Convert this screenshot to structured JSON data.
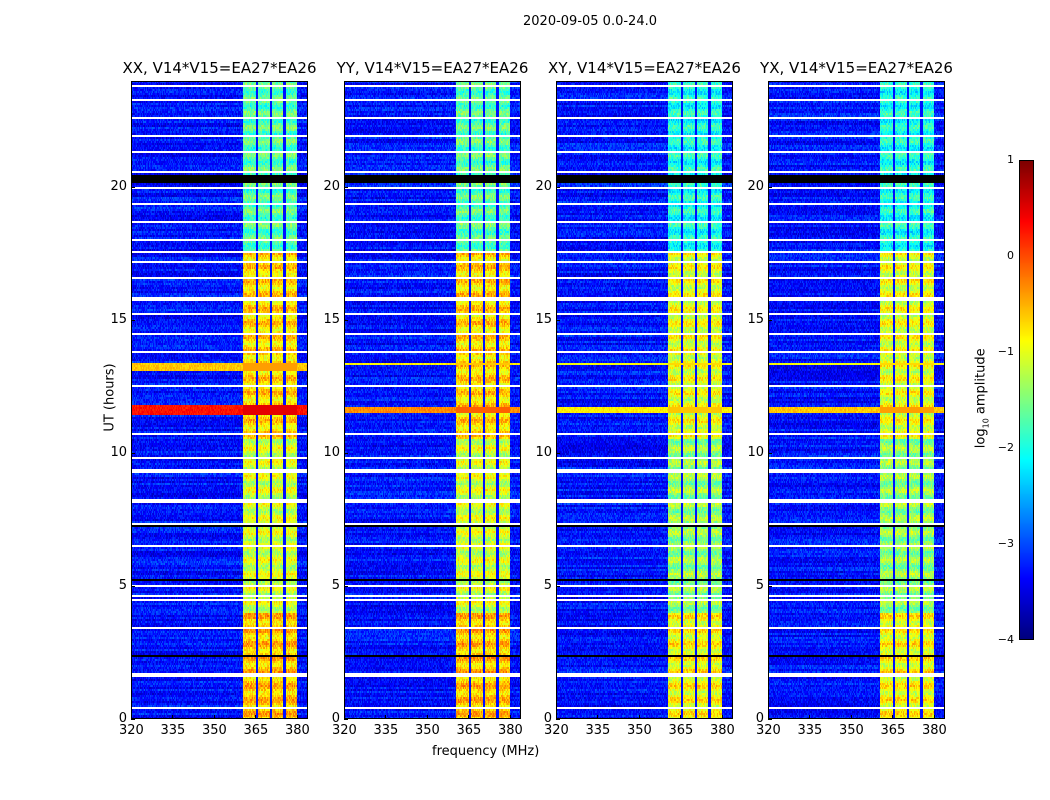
{
  "chart_data": {
    "type": "heatmap",
    "title": "2020-09-05 0.0-24.0",
    "xlabel": "frequency (MHz)",
    "ylabel": "UT (hours)",
    "xlim": [
      320,
      384
    ],
    "ylim": [
      0,
      24
    ],
    "xticks": [
      "320",
      "335",
      "350",
      "365",
      "380"
    ],
    "xtick_values": [
      320,
      335,
      350,
      365,
      380
    ],
    "yticks": [
      "0",
      "5",
      "10",
      "15",
      "20"
    ],
    "ytick_values": [
      0,
      5,
      10,
      15,
      20
    ],
    "panels": [
      {
        "title": "XX, V14*V15=EA27*EA26",
        "strong_rows": [
          [
            11.4,
            11.8,
            0.3
          ],
          [
            13.1,
            13.4,
            -0.6
          ]
        ]
      },
      {
        "title": "YY, V14*V15=EA27*EA26",
        "strong_rows": [
          [
            11.5,
            11.7,
            -0.3
          ],
          [
            13.3,
            13.4,
            -0.8
          ]
        ]
      },
      {
        "title": "XY, V14*V15=EA27*EA26",
        "strong_rows": [
          [
            11.5,
            11.7,
            -0.8
          ],
          [
            13.3,
            13.4,
            -0.9
          ]
        ]
      },
      {
        "title": "YX, V14*V15=EA27*EA26",
        "strong_rows": [
          [
            11.5,
            11.7,
            -0.6
          ],
          [
            13.3,
            13.4,
            -0.9
          ]
        ]
      }
    ],
    "background_log_amplitude": -3.3,
    "rfi_band_mhz": [
      360.5,
      380
    ],
    "rfi_band_gaps_mhz": [
      365.5,
      370.5,
      375.5
    ],
    "rfi_band_log_amplitude_by_time": [
      {
        "from": 0,
        "to": 4,
        "value": -0.6
      },
      {
        "from": 4,
        "to": 10.5,
        "value": -1.1
      },
      {
        "from": 10.5,
        "to": 17.5,
        "value": -0.7
      },
      {
        "from": 17.5,
        "to": 24,
        "value": -1.7
      }
    ],
    "flagged_hours_white": [
      0.4,
      1.6,
      1.7,
      3.4,
      4.5,
      4.6,
      5.0,
      6.5,
      7.3,
      8.2,
      9.3,
      9.4,
      9.8,
      10.7,
      12.5,
      13.8,
      14.5,
      15.2,
      15.8,
      16.6,
      17.2,
      17.6,
      18.0,
      18.7,
      19.4,
      20.0,
      20.6,
      21.3,
      21.9,
      22.6,
      23.3,
      23.8
    ],
    "flagged_hours_black": [
      [
        20.2,
        20.5
      ],
      [
        2.3,
        2.4
      ],
      [
        7.2,
        7.3
      ],
      [
        5.2,
        5.3
      ]
    ],
    "colorbar": {
      "label": "log10 amplitude",
      "colormap": "jet",
      "range": [
        -4,
        1
      ],
      "ticks": [
        "1",
        "0",
        "−1",
        "−2",
        "−3",
        "−4"
      ],
      "tick_values": [
        1,
        0,
        -1,
        -2,
        -3,
        -4
      ]
    }
  }
}
